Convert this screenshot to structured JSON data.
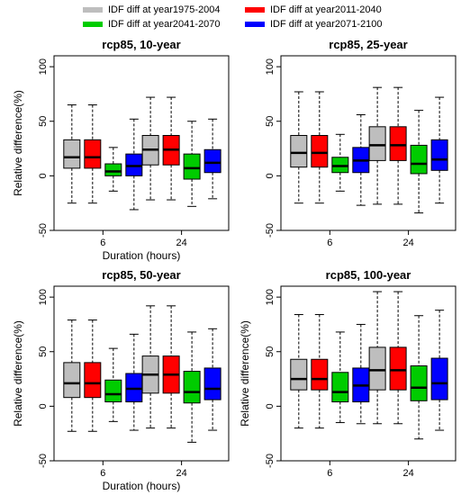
{
  "legend": [
    {
      "label": "IDF diff at year1975-2004",
      "color": "#bebebe"
    },
    {
      "label": "IDF diff at year2011-2040",
      "color": "#ff0000"
    },
    {
      "label": "IDF diff at year2041-2070",
      "color": "#00cc00"
    },
    {
      "label": "IDF diff at year2071-2100",
      "color": "#0000ff"
    }
  ],
  "chart_data": [
    {
      "type": "boxplot",
      "title": "rcp85, 10-year",
      "xlabel": "Duration (hours)",
      "ylabel": "Relative difference(%)",
      "categories": [
        "6",
        "24"
      ],
      "ylim": [
        -50,
        110
      ],
      "yticks": [
        -50,
        0,
        50,
        100
      ],
      "series": [
        {
          "name": "IDF diff at year1975-2004",
          "boxes": [
            {
              "whisker_low": -25,
              "q1": 7,
              "median": 17,
              "q3": 33,
              "whisker_high": 65
            },
            {
              "whisker_low": -22,
              "q1": 10,
              "median": 24,
              "q3": 37,
              "whisker_high": 72
            }
          ]
        },
        {
          "name": "IDF diff at year2011-2040",
          "boxes": [
            {
              "whisker_low": -25,
              "q1": 7,
              "median": 17,
              "q3": 33,
              "whisker_high": 65
            },
            {
              "whisker_low": -22,
              "q1": 10,
              "median": 24,
              "q3": 37,
              "whisker_high": 72
            }
          ]
        },
        {
          "name": "IDF diff at year2041-2070",
          "boxes": [
            {
              "whisker_low": -14,
              "q1": 0,
              "median": 4,
              "q3": 11,
              "whisker_high": 26
            },
            {
              "whisker_low": -28,
              "q1": -3,
              "median": 7,
              "q3": 20,
              "whisker_high": 50
            }
          ]
        },
        {
          "name": "IDF diff at year2071-2100",
          "boxes": [
            {
              "whisker_low": -31,
              "q1": 0,
              "median": 9,
              "q3": 20,
              "whisker_high": 52
            },
            {
              "whisker_low": -21,
              "q1": 3,
              "median": 12,
              "q3": 24,
              "whisker_high": 52
            }
          ]
        }
      ]
    },
    {
      "type": "boxplot",
      "title": "rcp85, 25-year",
      "xlabel": "",
      "ylabel": "",
      "categories": [
        "6",
        "24"
      ],
      "ylim": [
        -50,
        110
      ],
      "yticks": [
        -50,
        0,
        50,
        100
      ],
      "series": [
        {
          "name": "IDF diff at year1975-2004",
          "boxes": [
            {
              "whisker_low": -25,
              "q1": 8,
              "median": 21,
              "q3": 37,
              "whisker_high": 77
            },
            {
              "whisker_low": -26,
              "q1": 14,
              "median": 28,
              "q3": 45,
              "whisker_high": 81
            }
          ]
        },
        {
          "name": "IDF diff at year2011-2040",
          "boxes": [
            {
              "whisker_low": -25,
              "q1": 8,
              "median": 21,
              "q3": 37,
              "whisker_high": 77
            },
            {
              "whisker_low": -26,
              "q1": 14,
              "median": 28,
              "q3": 45,
              "whisker_high": 81
            }
          ]
        },
        {
          "name": "IDF diff at year2041-2070",
          "boxes": [
            {
              "whisker_low": -14,
              "q1": 3,
              "median": 9,
              "q3": 17,
              "whisker_high": 38
            },
            {
              "whisker_low": -34,
              "q1": 2,
              "median": 11,
              "q3": 28,
              "whisker_high": 60
            }
          ]
        },
        {
          "name": "IDF diff at year2071-2100",
          "boxes": [
            {
              "whisker_low": -27,
              "q1": 3,
              "median": 14,
              "q3": 26,
              "whisker_high": 56
            },
            {
              "whisker_low": -25,
              "q1": 5,
              "median": 15,
              "q3": 33,
              "whisker_high": 72
            }
          ]
        }
      ]
    },
    {
      "type": "boxplot",
      "title": "rcp85, 50-year",
      "xlabel": "Duration (hours)",
      "ylabel": "Relative difference(%)",
      "categories": [
        "6",
        "24"
      ],
      "ylim": [
        -50,
        110
      ],
      "yticks": [
        -50,
        0,
        50,
        100
      ],
      "series": [
        {
          "name": "IDF diff at year1975-2004",
          "boxes": [
            {
              "whisker_low": -23,
              "q1": 8,
              "median": 21,
              "q3": 40,
              "whisker_high": 79
            },
            {
              "whisker_low": -20,
              "q1": 12,
              "median": 29,
              "q3": 46,
              "whisker_high": 92
            }
          ]
        },
        {
          "name": "IDF diff at year2011-2040",
          "boxes": [
            {
              "whisker_low": -23,
              "q1": 8,
              "median": 21,
              "q3": 40,
              "whisker_high": 79
            },
            {
              "whisker_low": -20,
              "q1": 12,
              "median": 29,
              "q3": 46,
              "whisker_high": 92
            }
          ]
        },
        {
          "name": "IDF diff at year2041-2070",
          "boxes": [
            {
              "whisker_low": -14,
              "q1": 4,
              "median": 11,
              "q3": 24,
              "whisker_high": 53
            },
            {
              "whisker_low": -33,
              "q1": 3,
              "median": 13,
              "q3": 32,
              "whisker_high": 68
            }
          ]
        },
        {
          "name": "IDF diff at year2071-2100",
          "boxes": [
            {
              "whisker_low": -22,
              "q1": 4,
              "median": 16,
              "q3": 30,
              "whisker_high": 66
            },
            {
              "whisker_low": -22,
              "q1": 6,
              "median": 16,
              "q3": 35,
              "whisker_high": 71
            }
          ]
        }
      ]
    },
    {
      "type": "boxplot",
      "title": "rcp85, 100-year",
      "xlabel": "",
      "ylabel": "Relative difference(%)",
      "categories": [
        "6",
        "24"
      ],
      "ylim": [
        -50,
        110
      ],
      "yticks": [
        -50,
        0,
        50,
        100
      ],
      "series": [
        {
          "name": "IDF diff at year1975-2004",
          "boxes": [
            {
              "whisker_low": -20,
              "q1": 15,
              "median": 25,
              "q3": 43,
              "whisker_high": 84
            },
            {
              "whisker_low": -16,
              "q1": 15,
              "median": 33,
              "q3": 54,
              "whisker_high": 105
            }
          ]
        },
        {
          "name": "IDF diff at year2011-2040",
          "boxes": [
            {
              "whisker_low": -20,
              "q1": 15,
              "median": 25,
              "q3": 43,
              "whisker_high": 84
            },
            {
              "whisker_low": -16,
              "q1": 15,
              "median": 33,
              "q3": 54,
              "whisker_high": 105
            }
          ]
        },
        {
          "name": "IDF diff at year2041-2070",
          "boxes": [
            {
              "whisker_low": -15,
              "q1": 4,
              "median": 13,
              "q3": 31,
              "whisker_high": 68
            },
            {
              "whisker_low": -30,
              "q1": 5,
              "median": 17,
              "q3": 37,
              "whisker_high": 83
            }
          ]
        },
        {
          "name": "IDF diff at year2071-2100",
          "boxes": [
            {
              "whisker_low": -16,
              "q1": 4,
              "median": 19,
              "q3": 35,
              "whisker_high": 75
            },
            {
              "whisker_low": -22,
              "q1": 6,
              "median": 21,
              "q3": 44,
              "whisker_high": 88
            }
          ]
        }
      ]
    }
  ]
}
